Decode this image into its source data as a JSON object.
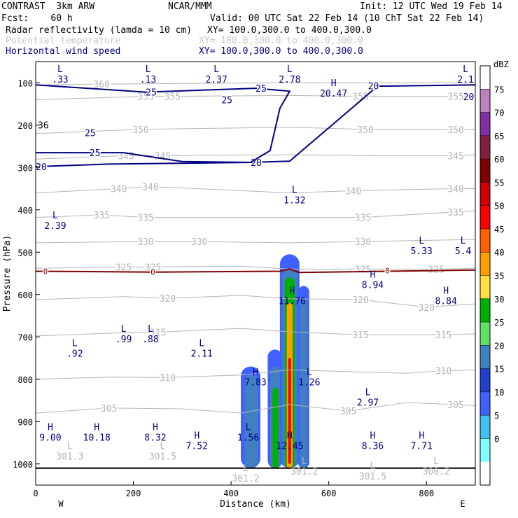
{
  "header": {
    "model": "CONTRAST  3km ARW",
    "org": "NCAR/MMM",
    "init": "Init: 12 UTC Wed 19 Feb 14",
    "fcst": "Fcst:    60 h",
    "valid": "Valid: 00 UTC Sat 22 Feb 14 (10 ChT Sat 22 Feb 14)",
    "field1_name": "Radar reflectivity (lamda = 10 cm)",
    "field1_xy": "XY= 100.0,300.0 to 400.0,300.0",
    "field2_name": "Potential temperature",
    "field2_xy": "XY= 100.0,300.0 to 400.0,300.0",
    "field3_name": "Horizontal wind speed",
    "field3_xy": "XY= 100.0,300.0 to 400.0,300.0"
  },
  "colors": {
    "theta": "#b4b4b4",
    "wind": "#000080",
    "zero_line": "#800000",
    "hl_label": "#000080"
  },
  "chart_data": {
    "type": "vertical cross-section",
    "xlabel": "Distance (km)",
    "ylabel": "Pressure (hPa)",
    "x_ticks": [
      0,
      200,
      400,
      600,
      800
    ],
    "y_ticks": [
      100,
      200,
      300,
      400,
      500,
      600,
      700,
      800,
      900,
      1000
    ],
    "xlim": [
      0,
      900
    ],
    "ylim": [
      50,
      1050
    ],
    "x_end_labels": {
      "left": "W",
      "right": "E"
    },
    "colorbar": {
      "unit": "dBZ",
      "levels": [
        "75",
        "70",
        "65",
        "60",
        "55",
        "50",
        "45",
        "40",
        "35",
        "30",
        "25",
        "20",
        "15",
        "10",
        "5",
        "0"
      ],
      "colors": [
        "#ffffff",
        "#c080c0",
        "#8030a0",
        "#802040",
        "#800000",
        "#d00000",
        "#ff0000",
        "#ff6000",
        "#ffa000",
        "#ffe040",
        "#00b000",
        "#60e060",
        "#4080c0",
        "#2040d0",
        "#4060ff",
        "#40c0f0",
        "#80ffff",
        "#ffffff"
      ]
    },
    "theta_contours": [
      {
        "value": 300,
        "labels": [],
        "points": [
          [
            0,
            1010
          ],
          [
            900,
            1010
          ]
        ]
      },
      {
        "value": 305,
        "labels": [
          [
            150,
            868
          ],
          [
            640,
            875
          ],
          [
            860,
            860
          ]
        ],
        "points": [
          [
            0,
            880
          ],
          [
            150,
            868
          ],
          [
            300,
            870
          ],
          [
            420,
            880
          ],
          [
            520,
            860
          ],
          [
            640,
            875
          ],
          [
            760,
            855
          ],
          [
            860,
            860
          ],
          [
            900,
            862
          ]
        ]
      },
      {
        "value": 310,
        "labels": [
          [
            270,
            796
          ],
          [
            835,
            780
          ]
        ],
        "points": [
          [
            0,
            800
          ],
          [
            150,
            795
          ],
          [
            270,
            796
          ],
          [
            420,
            790
          ],
          [
            520,
            778
          ],
          [
            640,
            782
          ],
          [
            760,
            786
          ],
          [
            835,
            780
          ],
          [
            900,
            778
          ]
        ]
      },
      {
        "value": 315,
        "labels": [
          [
            250,
            689
          ],
          [
            665,
            695
          ],
          [
            835,
            695
          ]
        ],
        "points": [
          [
            0,
            698
          ],
          [
            180,
            690
          ],
          [
            250,
            689
          ],
          [
            420,
            680
          ],
          [
            520,
            688
          ],
          [
            665,
            695
          ],
          [
            835,
            695
          ],
          [
            900,
            693
          ]
        ]
      },
      {
        "value": 320,
        "labels": [
          [
            270,
            609
          ],
          [
            665,
            612
          ],
          [
            800,
            630
          ]
        ],
        "points": [
          [
            0,
            612
          ],
          [
            180,
            605
          ],
          [
            270,
            609
          ],
          [
            420,
            602
          ],
          [
            520,
            610
          ],
          [
            665,
            612
          ],
          [
            800,
            630
          ],
          [
            900,
            622
          ]
        ]
      },
      {
        "value": 325,
        "labels": [
          [
            180,
            535
          ],
          [
            240,
            535
          ],
          [
            670,
            540
          ],
          [
            820,
            540
          ]
        ],
        "points": [
          [
            0,
            538
          ],
          [
            180,
            535
          ],
          [
            240,
            535
          ],
          [
            420,
            533
          ],
          [
            520,
            540
          ],
          [
            670,
            540
          ],
          [
            820,
            540
          ],
          [
            900,
            538
          ]
        ]
      },
      {
        "value": 330,
        "labels": [
          [
            225,
            475
          ],
          [
            335,
            475
          ],
          [
            670,
            475
          ]
        ],
        "points": [
          [
            0,
            478
          ],
          [
            225,
            475
          ],
          [
            335,
            475
          ],
          [
            520,
            478
          ],
          [
            670,
            475
          ],
          [
            900,
            470
          ]
        ]
      },
      {
        "value": 335,
        "labels": [
          [
            135,
            412
          ],
          [
            225,
            418
          ],
          [
            670,
            418
          ],
          [
            860,
            405
          ]
        ],
        "points": [
          [
            0,
            418
          ],
          [
            135,
            412
          ],
          [
            225,
            418
          ],
          [
            520,
            418
          ],
          [
            670,
            418
          ],
          [
            860,
            405
          ],
          [
            900,
            402
          ]
        ]
      },
      {
        "value": 340,
        "labels": [
          [
            170,
            350
          ],
          [
            235,
            345
          ],
          [
            650,
            355
          ],
          [
            860,
            350
          ]
        ],
        "points": [
          [
            0,
            360
          ],
          [
            170,
            350
          ],
          [
            235,
            345
          ],
          [
            520,
            360
          ],
          [
            650,
            355
          ],
          [
            860,
            350
          ],
          [
            900,
            350
          ]
        ]
      },
      {
        "value": 345,
        "labels": [
          [
            185,
            272
          ],
          [
            260,
            272
          ],
          [
            860,
            272
          ]
        ],
        "points": [
          [
            0,
            280
          ],
          [
            185,
            272
          ],
          [
            260,
            272
          ],
          [
            520,
            270
          ],
          [
            700,
            272
          ],
          [
            860,
            272
          ],
          [
            900,
            270
          ]
        ]
      },
      {
        "value": 350,
        "labels": [
          [
            215,
            210
          ],
          [
            675,
            210
          ],
          [
            860,
            210
          ]
        ],
        "points": [
          [
            0,
            220
          ],
          [
            215,
            210
          ],
          [
            520,
            205
          ],
          [
            675,
            210
          ],
          [
            860,
            210
          ],
          [
            900,
            210
          ]
        ]
      },
      {
        "value": 355,
        "labels": [
          [
            225,
            132
          ],
          [
            280,
            132
          ],
          [
            665,
            132
          ],
          [
            860,
            132
          ]
        ],
        "points": [
          [
            0,
            140
          ],
          [
            225,
            132
          ],
          [
            280,
            132
          ],
          [
            520,
            130
          ],
          [
            665,
            132
          ],
          [
            860,
            132
          ],
          [
            900,
            130
          ]
        ]
      },
      {
        "value": 360,
        "labels": [
          [
            135,
            103
          ]
        ],
        "points": [
          [
            0,
            105
          ],
          [
            135,
            103
          ],
          [
            520,
            100
          ],
          [
            900,
            100
          ]
        ]
      }
    ],
    "theta_left_label": "36",
    "wind_contours": [
      {
        "value": 20,
        "labels": [
          [
            0,
            298
          ],
          [
            440,
            288
          ],
          [
            680,
            107
          ],
          [
            875,
            133
          ]
        ],
        "points": [
          [
            0,
            298
          ],
          [
            150,
            292
          ],
          [
            300,
            290
          ],
          [
            440,
            288
          ],
          [
            520,
            285
          ],
          [
            700,
            108
          ],
          [
            900,
            105
          ]
        ]
      },
      {
        "value": 25,
        "labels": [
          [
            225,
            122
          ],
          [
            450,
            113
          ],
          [
            100,
            218
          ],
          [
            380,
            140
          ],
          [
            110,
            265
          ]
        ],
        "points": [
          [
            0,
            105
          ],
          [
            225,
            122
          ],
          [
            450,
            113
          ],
          [
            520,
            120
          ],
          [
            500,
            160
          ],
          [
            480,
            260
          ],
          [
            440,
            288
          ],
          [
            300,
            286
          ],
          [
            180,
            265
          ],
          [
            110,
            265
          ],
          [
            0,
            265
          ]
        ]
      }
    ],
    "zero_contour": {
      "value": 0,
      "labels": [
        [
          20,
          545
        ],
        [
          240,
          547
        ],
        [
          720,
          543
        ]
      ],
      "points": [
        [
          0,
          545
        ],
        [
          240,
          547
        ],
        [
          500,
          545
        ],
        [
          520,
          540
        ],
        [
          540,
          548
        ],
        [
          900,
          542
        ]
      ]
    },
    "extrema": [
      {
        "kind": "L",
        "value": ".33",
        "x": 50,
        "p": 75
      },
      {
        "kind": "L",
        "value": ".13",
        "x": 230,
        "p": 75
      },
      {
        "kind": "L",
        "value": "2.37",
        "x": 370,
        "p": 75
      },
      {
        "kind": "L",
        "value": "2.78",
        "x": 520,
        "p": 75
      },
      {
        "kind": "L",
        "value": "2.1",
        "x": 880,
        "p": 75
      },
      {
        "kind": "H",
        "value": "20.47",
        "x": 610,
        "p": 108
      },
      {
        "kind": "L",
        "value": "1.32",
        "x": 530,
        "p": 360
      },
      {
        "kind": "L",
        "value": "2.39",
        "x": 40,
        "p": 420
      },
      {
        "kind": "L",
        "value": "5.33",
        "x": 790,
        "p": 480
      },
      {
        "kind": "L",
        "value": "5.4",
        "x": 875,
        "p": 480
      },
      {
        "kind": "H",
        "value": "8.94",
        "x": 690,
        "p": 560
      },
      {
        "kind": "H",
        "value": "11.76",
        "x": 525,
        "p": 598
      },
      {
        "kind": "H",
        "value": "8.84",
        "x": 840,
        "p": 598
      },
      {
        "kind": "L",
        "value": ".99",
        "x": 180,
        "p": 688
      },
      {
        "kind": "L",
        "value": ".88",
        "x": 235,
        "p": 688
      },
      {
        "kind": "L",
        "value": ".92",
        "x": 80,
        "p": 722
      },
      {
        "kind": "L",
        "value": "2.11",
        "x": 340,
        "p": 722
      },
      {
        "kind": "H",
        "value": "7.83",
        "x": 450,
        "p": 790
      },
      {
        "kind": "L",
        "value": "1.26",
        "x": 560,
        "p": 790
      },
      {
        "kind": "L",
        "value": "2.97",
        "x": 680,
        "p": 838
      },
      {
        "kind": "H",
        "value": "9.00",
        "x": 30,
        "p": 920
      },
      {
        "kind": "H",
        "value": "10.18",
        "x": 125,
        "p": 920
      },
      {
        "kind": "H",
        "value": "8.32",
        "x": 245,
        "p": 920
      },
      {
        "kind": "H",
        "value": "7.52",
        "x": 330,
        "p": 940
      },
      {
        "kind": "L",
        "value": "1.56",
        "x": 435,
        "p": 920
      },
      {
        "kind": "H",
        "value": "12.45",
        "x": 520,
        "p": 940
      },
      {
        "kind": "H",
        "value": "8.36",
        "x": 690,
        "p": 940
      },
      {
        "kind": "H",
        "value": "7.71",
        "x": 790,
        "p": 940
      },
      {
        "kind": "L",
        "value": "301.3",
        "x": 70,
        "p": 965
      },
      {
        "kind": "L",
        "value": "301.5",
        "x": 260,
        "p": 965
      },
      {
        "kind": "L",
        "value": "301.2",
        "x": 550,
        "p": 1000
      },
      {
        "kind": "L",
        "value": "301.2",
        "x": 430,
        "p": 1017
      },
      {
        "kind": "L",
        "value": "301.5",
        "x": 690,
        "p": 1012
      },
      {
        "kind": "L",
        "value": "300.2",
        "x": 820,
        "p": 1000
      }
    ],
    "reflectivity_cells": [
      {
        "x0": 420,
        "x1": 460,
        "ptop": 770,
        "pbot": 1010,
        "dbz": 10
      },
      {
        "x0": 428,
        "x1": 455,
        "ptop": 790,
        "pbot": 1010,
        "dbz": 20
      },
      {
        "x0": 475,
        "x1": 505,
        "ptop": 730,
        "pbot": 1010,
        "dbz": 10
      },
      {
        "x0": 480,
        "x1": 500,
        "ptop": 770,
        "pbot": 1010,
        "dbz": 20
      },
      {
        "x0": 485,
        "x1": 497,
        "ptop": 820,
        "pbot": 1010,
        "dbz": 30
      },
      {
        "x0": 500,
        "x1": 540,
        "ptop": 505,
        "pbot": 1010,
        "dbz": 10
      },
      {
        "x0": 505,
        "x1": 535,
        "ptop": 540,
        "pbot": 1010,
        "dbz": 20
      },
      {
        "x0": 510,
        "x1": 530,
        "ptop": 560,
        "pbot": 1010,
        "dbz": 30
      },
      {
        "x0": 514,
        "x1": 526,
        "ptop": 620,
        "pbot": 1010,
        "dbz": 40
      },
      {
        "x0": 517,
        "x1": 523,
        "ptop": 750,
        "pbot": 1000,
        "dbz": 50
      },
      {
        "x0": 537,
        "x1": 560,
        "ptop": 580,
        "pbot": 1010,
        "dbz": 10
      },
      {
        "x0": 541,
        "x1": 556,
        "ptop": 610,
        "pbot": 1010,
        "dbz": 20
      }
    ]
  }
}
